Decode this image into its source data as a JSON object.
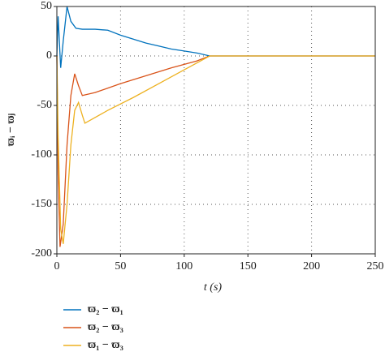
{
  "chart_data": {
    "type": "line",
    "xlabel": "t (s)",
    "ylabel": "ϖᵢ − ϖⱼ",
    "xlim": [
      0,
      250
    ],
    "xticks": [
      0,
      50,
      100,
      150,
      200,
      250
    ],
    "ylim": [
      -200,
      50
    ],
    "yticks": [
      -200,
      -150,
      -100,
      -50,
      0,
      50
    ],
    "grid": true,
    "legend": "below",
    "series": [
      {
        "name": "ϖ₂ − ϖ₁",
        "color": "#0072bd",
        "x": [
          0,
          1,
          3,
          5,
          8,
          11,
          15,
          20,
          30,
          40,
          50,
          60,
          70,
          80,
          90,
          100,
          110,
          120,
          130,
          250
        ],
        "values": [
          0,
          40,
          -12,
          15,
          50,
          35,
          28,
          27,
          27,
          26,
          21,
          17,
          13,
          10,
          7,
          5,
          3,
          0,
          0,
          0
        ]
      },
      {
        "name": "ϖ₂ − ϖ₃",
        "color": "#d95319",
        "x": [
          0,
          1,
          2.5,
          5,
          8,
          11,
          14,
          17,
          20,
          30,
          50,
          70,
          90,
          110,
          120,
          130,
          250
        ],
        "values": [
          0,
          -120,
          -193,
          -170,
          -90,
          -40,
          -18,
          -30,
          -40,
          -37,
          -28,
          -20,
          -12,
          -5,
          0,
          0,
          0
        ]
      },
      {
        "name": "ϖ₁ − ϖ₃",
        "color": "#edb120",
        "x": [
          0,
          1,
          3,
          5,
          8,
          11,
          14,
          17,
          20,
          22,
          40,
          60,
          80,
          100,
          120,
          130,
          250
        ],
        "values": [
          0,
          -80,
          -175,
          -190,
          -150,
          -90,
          -55,
          -47,
          -60,
          -68,
          -55,
          -42,
          -28,
          -14,
          0,
          0,
          0
        ]
      }
    ]
  }
}
